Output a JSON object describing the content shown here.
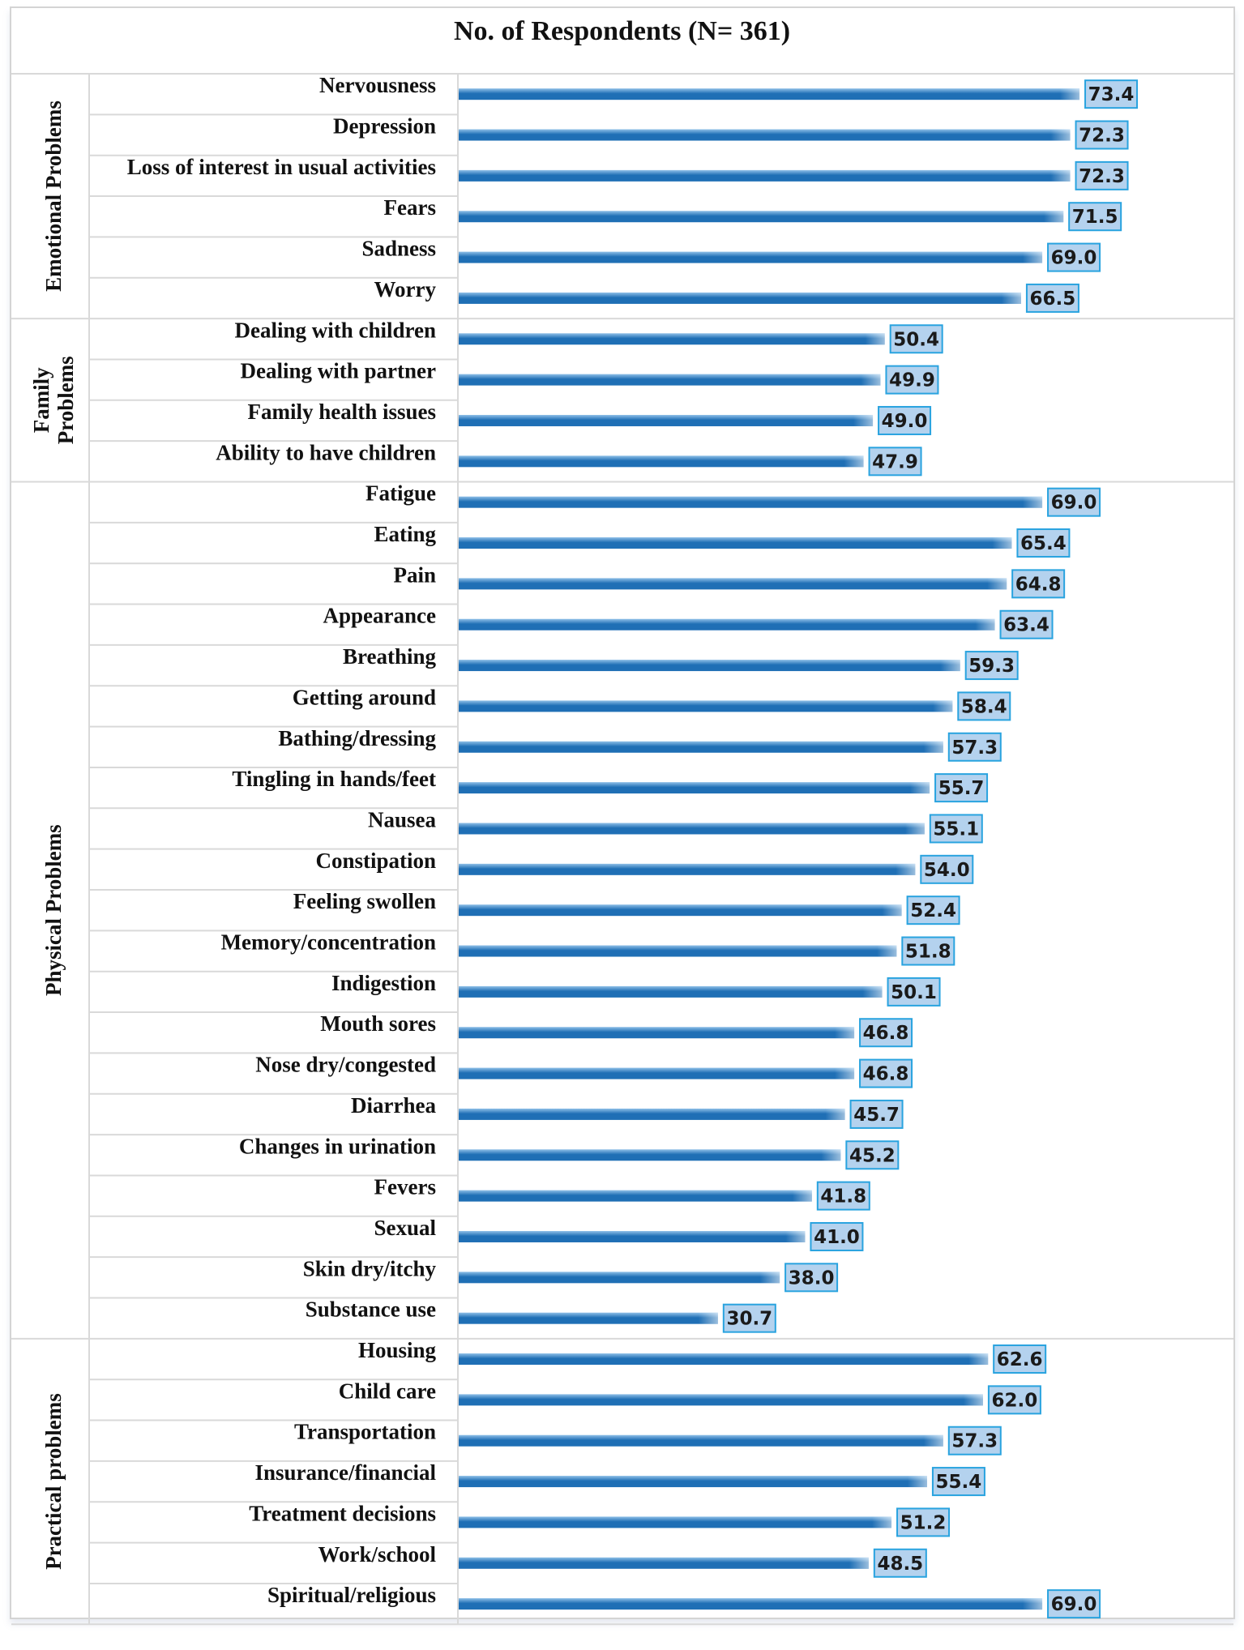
{
  "chart_data": {
    "type": "bar",
    "orientation": "horizontal",
    "title": "No. of Respondents (N= 361)",
    "xlim": [
      0,
      100
    ],
    "groups": [
      {
        "name": "Emotional Problems",
        "items": [
          {
            "label": "Nervousness",
            "value": 73.4
          },
          {
            "label": "Depression",
            "value": 72.3
          },
          {
            "label": "Loss of interest in usual activities",
            "value": 72.3
          },
          {
            "label": "Fears",
            "value": 71.5
          },
          {
            "label": "Sadness",
            "value": 69.0
          },
          {
            "label": "Worry",
            "value": 66.5
          }
        ]
      },
      {
        "name": "Family Problems",
        "name_lines": [
          "Family",
          "Problems"
        ],
        "items": [
          {
            "label": "Dealing with children",
            "value": 50.4
          },
          {
            "label": "Dealing with partner",
            "value": 49.9
          },
          {
            "label": "Family health issues",
            "value": 49.0
          },
          {
            "label": "Ability to have children",
            "value": 47.9
          }
        ]
      },
      {
        "name": "Physical Problems",
        "items": [
          {
            "label": "Fatigue",
            "value": 69.0
          },
          {
            "label": "Eating",
            "value": 65.4
          },
          {
            "label": "Pain",
            "value": 64.8
          },
          {
            "label": "Appearance",
            "value": 63.4
          },
          {
            "label": "Breathing",
            "value": 59.3
          },
          {
            "label": "Getting around",
            "value": 58.4
          },
          {
            "label": "Bathing/dressing",
            "value": 57.3
          },
          {
            "label": "Tingling in hands/feet",
            "value": 55.7
          },
          {
            "label": "Nausea",
            "value": 55.1
          },
          {
            "label": "Constipation",
            "value": 54.0
          },
          {
            "label": "Feeling swollen",
            "value": 52.4
          },
          {
            "label": "Memory/concentration",
            "value": 51.8
          },
          {
            "label": "Indigestion",
            "value": 50.1
          },
          {
            "label": "Mouth sores",
            "value": 46.8
          },
          {
            "label": "Nose dry/congested",
            "value": 46.8
          },
          {
            "label": "Diarrhea",
            "value": 45.7
          },
          {
            "label": "Changes in urination",
            "value": 45.2
          },
          {
            "label": "Fevers",
            "value": 41.8
          },
          {
            "label": "Sexual",
            "value": 41.0
          },
          {
            "label": "Skin dry/itchy",
            "value": 38.0
          },
          {
            "label": "Substance use",
            "value": 30.7
          }
        ]
      },
      {
        "name": "Practical problems",
        "items": [
          {
            "label": "Housing",
            "value": 62.6
          },
          {
            "label": "Child care",
            "value": 62.0
          },
          {
            "label": "Transportation",
            "value": 57.3
          },
          {
            "label": "Insurance/financial",
            "value": 55.4
          },
          {
            "label": "Treatment decisions",
            "value": 51.2
          },
          {
            "label": "Work/school",
            "value": 48.5
          },
          {
            "label": "Spiritual/religious",
            "value": 69.0
          }
        ]
      }
    ],
    "colors": {
      "bar_dark": "#1f6fb5",
      "bar_light": "#8fc0e8",
      "label_box_fill": "#b4d2ee",
      "label_box_border": "#29a3df",
      "grid": "#d9d9d9"
    }
  }
}
